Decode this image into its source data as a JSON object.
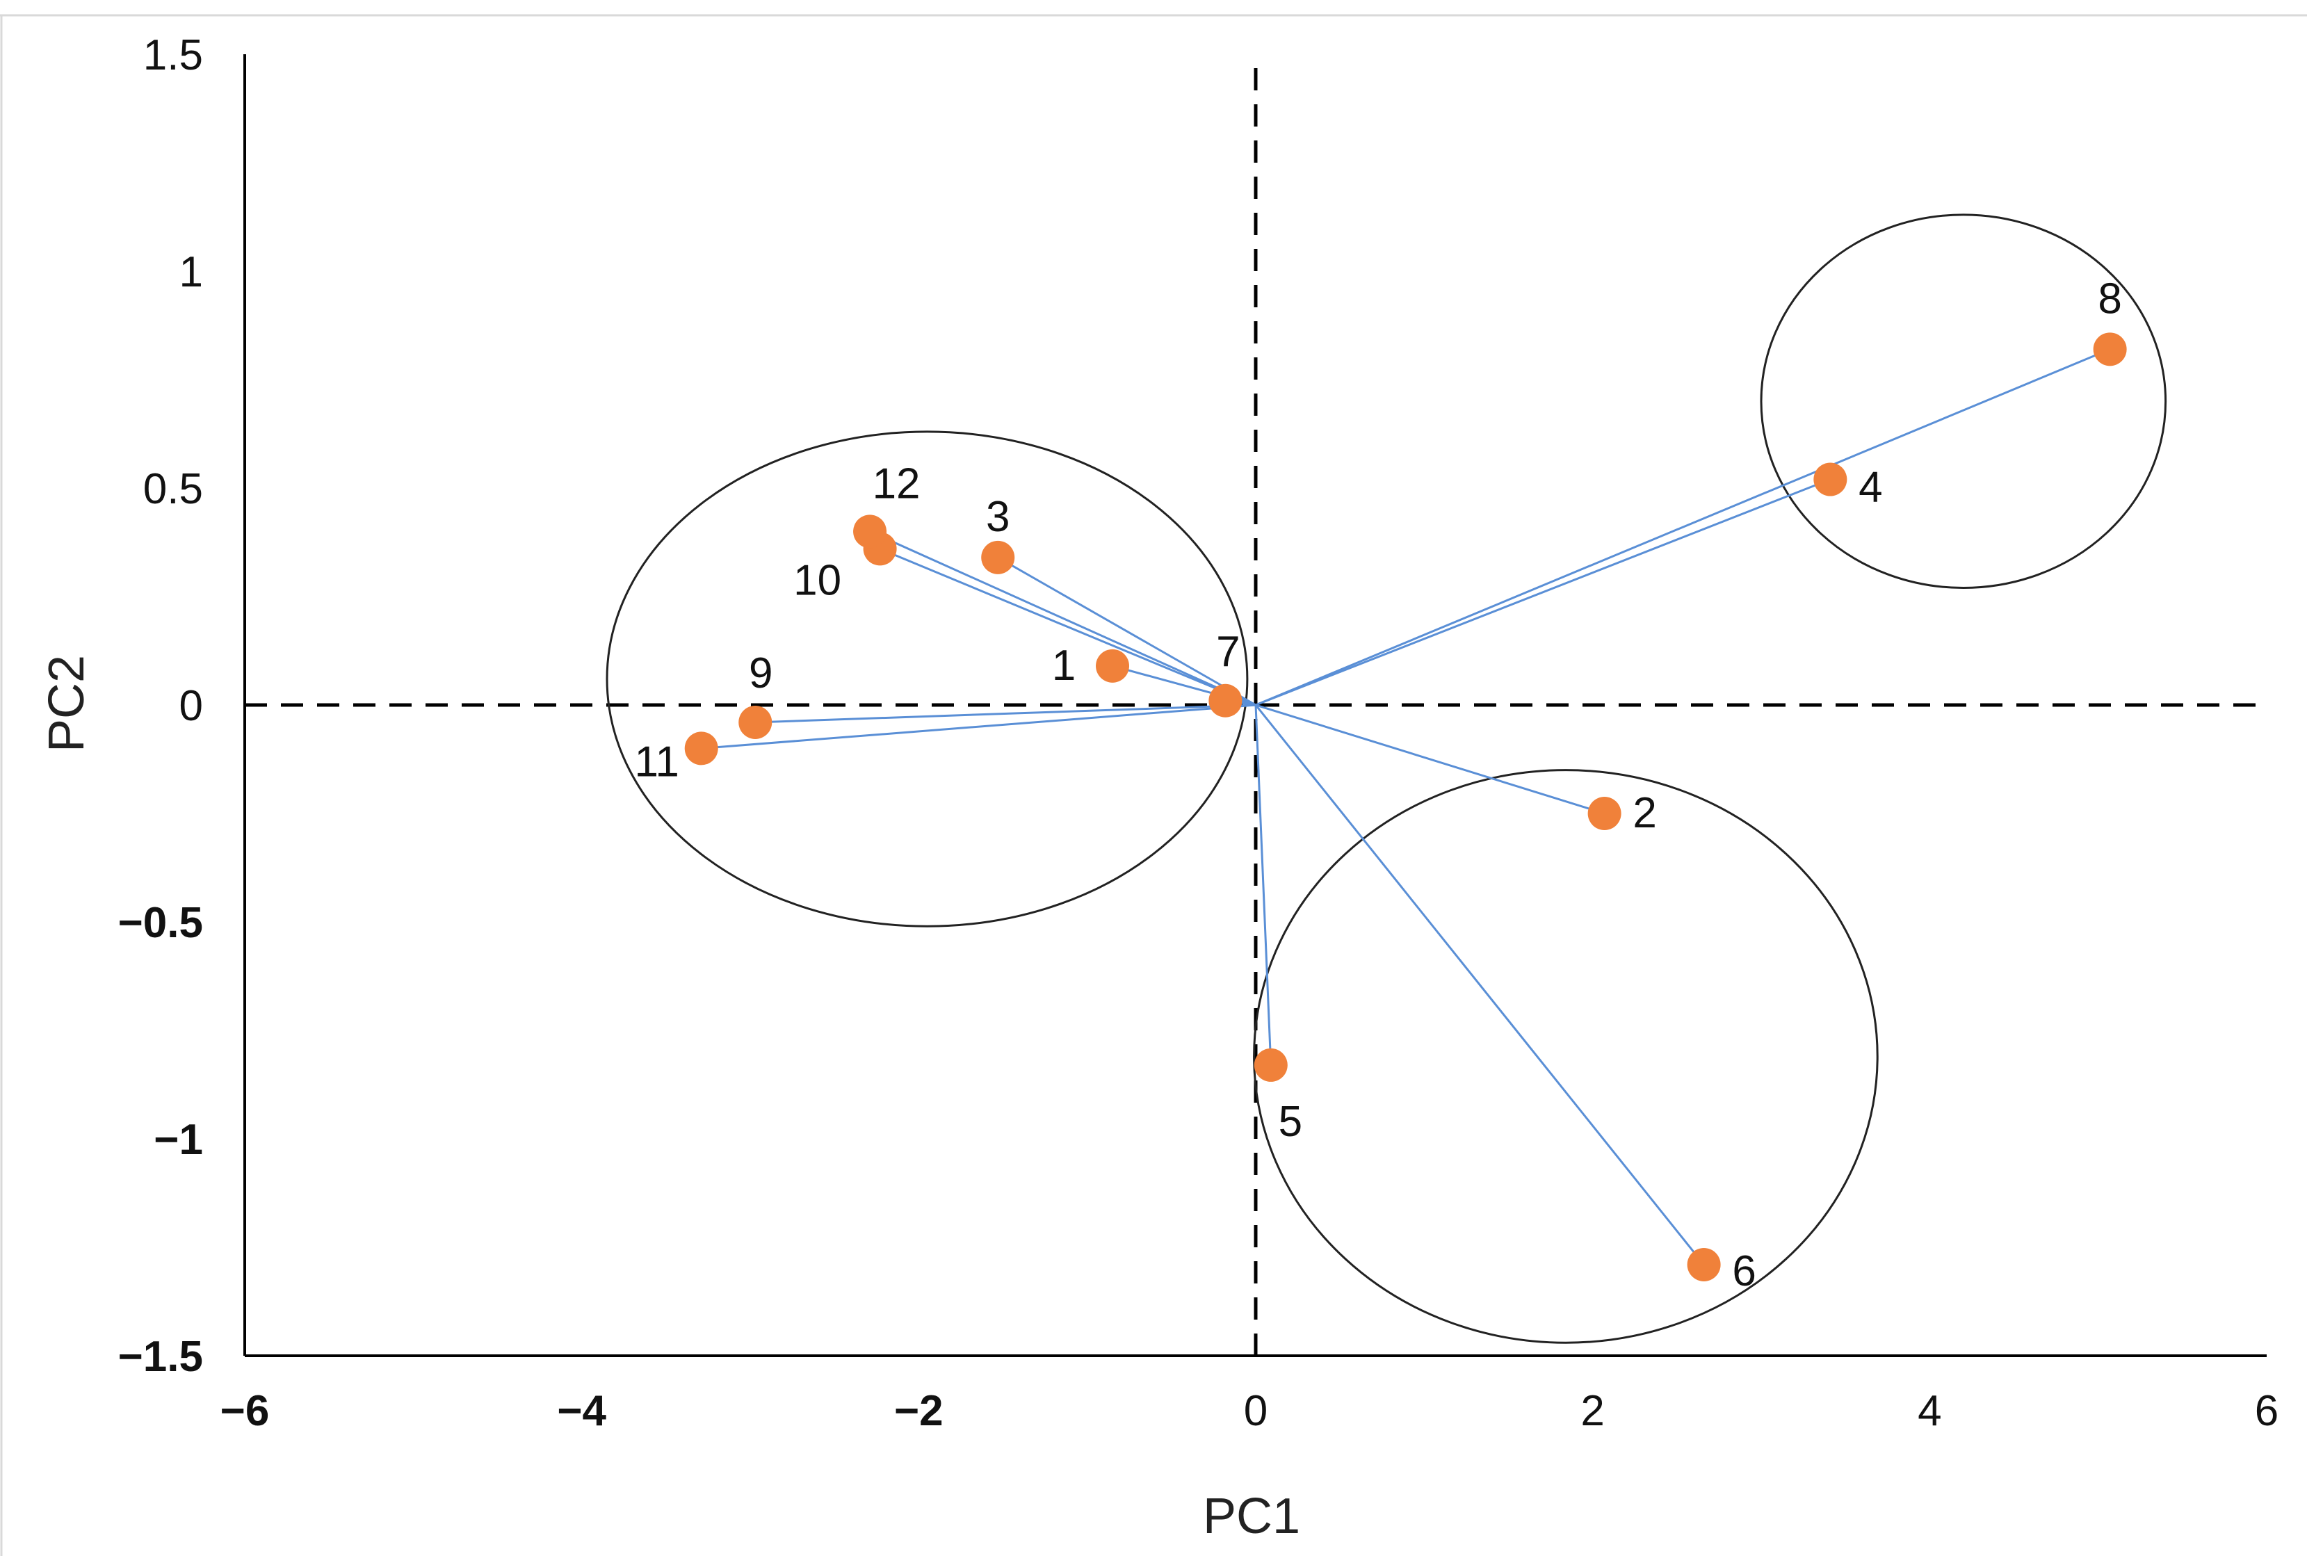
{
  "chart_data": {
    "type": "scatter",
    "title": "",
    "xlabel": "PC1",
    "ylabel": "PC2",
    "xlim": [
      -6,
      6
    ],
    "ylim": [
      -1.5,
      1.5
    ],
    "x_ticks": [
      "−6",
      "−4",
      "−2",
      "0",
      "2",
      "4",
      "6"
    ],
    "y_ticks": [
      "1.5",
      "1",
      "0.5",
      "0",
      "−0.5",
      "−1",
      "−1.5"
    ],
    "grid": false,
    "reference_lines": {
      "x": 0,
      "y": 0,
      "style": "dashed"
    },
    "series": [
      {
        "name": "samples",
        "points": [
          {
            "label": "1",
            "x": -0.85,
            "y": 0.09
          },
          {
            "label": "2",
            "x": 2.07,
            "y": -0.25
          },
          {
            "label": "3",
            "x": -1.53,
            "y": 0.34
          },
          {
            "label": "4",
            "x": 3.41,
            "y": 0.52
          },
          {
            "label": "5",
            "x": 0.09,
            "y": -0.83
          },
          {
            "label": "6",
            "x": 2.66,
            "y": -1.29
          },
          {
            "label": "7",
            "x": -0.18,
            "y": 0.01
          },
          {
            "label": "8",
            "x": 5.07,
            "y": 0.82
          },
          {
            "label": "9",
            "x": -2.97,
            "y": -0.04
          },
          {
            "label": "10",
            "x": -2.23,
            "y": 0.36
          },
          {
            "label": "11",
            "x": -3.29,
            "y": -0.1
          },
          {
            "label": "12",
            "x": -2.29,
            "y": 0.4
          }
        ]
      }
    ],
    "vector_origin": {
      "x": 0,
      "y": 0
    },
    "clusters": [
      {
        "members": [
          "1",
          "3",
          "7",
          "9",
          "10",
          "11",
          "12"
        ],
        "cx": -1.95,
        "cy": 0.06,
        "rx": 1.9,
        "ry": 0.57
      },
      {
        "members": [
          "4",
          "8"
        ],
        "cx": 4.2,
        "cy": 0.7,
        "rx": 1.2,
        "ry": 0.43
      },
      {
        "members": [
          "2",
          "5",
          "6"
        ],
        "cx": 1.84,
        "cy": -0.81,
        "rx": 1.85,
        "ry": 0.66
      }
    ],
    "colors": {
      "point": "#f0813a",
      "vector": "#5a8fd6",
      "axis": "#000000",
      "cluster": "#222222"
    }
  }
}
